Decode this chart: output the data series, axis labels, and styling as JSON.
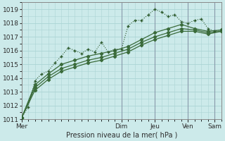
{
  "xlabel": "Pression niveau de la mer( hPa )",
  "bg_color": "#cceaea",
  "grid_color": "#aad4d4",
  "vline_color": "#8899aa",
  "line_color1": "#2d5a2d",
  "line_color2": "#3a6b3a",
  "ylim": [
    1011,
    1019.5
  ],
  "yticks": [
    1011,
    1012,
    1013,
    1014,
    1015,
    1016,
    1017,
    1018,
    1019
  ],
  "day_labels": [
    "Mer",
    "Dim",
    "Jeu",
    "Ven",
    "Sam"
  ],
  "day_positions": [
    0,
    15,
    20,
    25,
    29
  ],
  "vline_positions": [
    15,
    20,
    25,
    29
  ],
  "xlim": [
    0,
    30
  ],
  "series1_x": [
    0,
    1,
    2,
    3,
    4,
    5,
    6,
    7,
    8,
    9,
    10,
    11,
    12,
    13,
    14,
    15,
    16,
    17,
    18,
    19,
    20,
    21,
    22,
    23,
    24,
    25,
    26,
    27,
    28,
    29,
    30
  ],
  "series1_y": [
    1011.1,
    1011.9,
    1013.8,
    1014.3,
    1014.5,
    1015.1,
    1015.6,
    1016.2,
    1016.0,
    1015.8,
    1016.1,
    1015.9,
    1016.6,
    1015.9,
    1016.1,
    1016.1,
    1017.8,
    1018.2,
    1018.2,
    1018.6,
    1019.0,
    1018.8,
    1018.5,
    1018.6,
    1018.1,
    1018.0,
    1018.2,
    1018.3,
    1017.6,
    1017.4,
    1017.5
  ],
  "series2_x": [
    0,
    2,
    4,
    6,
    8,
    10,
    12,
    14,
    16,
    18,
    20,
    22,
    24,
    26,
    28,
    30
  ],
  "series2_y": [
    1011.1,
    1013.5,
    1014.3,
    1015.0,
    1015.3,
    1015.6,
    1015.8,
    1016.0,
    1016.3,
    1016.8,
    1017.3,
    1017.6,
    1017.9,
    1017.6,
    1017.4,
    1017.5
  ],
  "series3_x": [
    0,
    2,
    4,
    6,
    8,
    10,
    12,
    14,
    16,
    18,
    20,
    22,
    24,
    26,
    28,
    30
  ],
  "series3_y": [
    1011.1,
    1013.3,
    1014.1,
    1014.7,
    1015.0,
    1015.3,
    1015.5,
    1015.8,
    1016.1,
    1016.6,
    1017.0,
    1017.3,
    1017.6,
    1017.5,
    1017.3,
    1017.4
  ],
  "series4_x": [
    0,
    2,
    4,
    6,
    8,
    10,
    12,
    14,
    16,
    18,
    20,
    22,
    24,
    26,
    28,
    30
  ],
  "series4_y": [
    1011.1,
    1013.1,
    1013.9,
    1014.5,
    1014.8,
    1015.1,
    1015.3,
    1015.6,
    1015.9,
    1016.4,
    1016.8,
    1017.1,
    1017.4,
    1017.4,
    1017.2,
    1017.4
  ]
}
